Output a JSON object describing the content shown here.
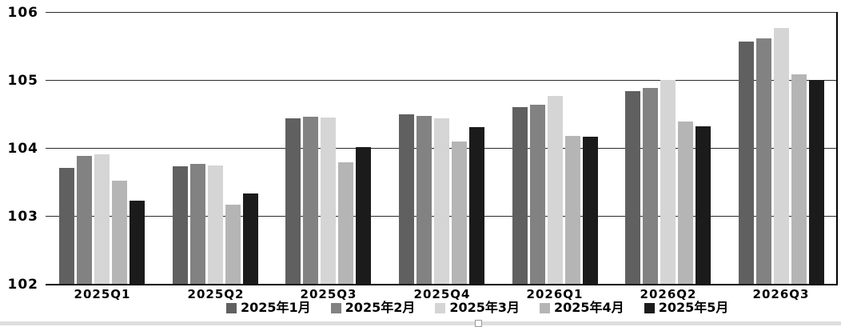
{
  "chart_data": {
    "type": "bar",
    "title": "",
    "xlabel": "",
    "ylabel": "",
    "categories": [
      "2025Q1",
      "2025Q2",
      "2025Q3",
      "2025Q4",
      "2026Q1",
      "2026Q2",
      "2026Q3"
    ],
    "series": [
      {
        "name": "2025年1月",
        "color": "#606060",
        "values": [
          103.7,
          103.73,
          104.44,
          104.5,
          104.6,
          104.83,
          105.56
        ]
      },
      {
        "name": "2025年2月",
        "color": "#828282",
        "values": [
          103.88,
          103.76,
          104.46,
          104.47,
          104.63,
          104.88,
          105.61
        ]
      },
      {
        "name": "2025年3月",
        "color": "#d5d5d5",
        "values": [
          103.9,
          103.74,
          104.45,
          104.43,
          104.76,
          105.0,
          105.77
        ]
      },
      {
        "name": "2025年4月",
        "color": "#b5b5b5",
        "values": [
          103.52,
          103.17,
          103.79,
          104.09,
          104.18,
          104.39,
          105.08
        ]
      },
      {
        "name": "2025年5月",
        "color": "#1b1b1b",
        "values": [
          103.22,
          103.33,
          104.01,
          104.31,
          104.17,
          104.32,
          105.0
        ]
      }
    ],
    "ylim": [
      102,
      106
    ],
    "yticks": [
      102,
      103,
      104,
      105,
      106
    ],
    "grid": true,
    "legend_position": "bottom",
    "colors": {
      "gridline": "#2b2b2b",
      "axis": "#000000",
      "background": "#ffffff",
      "text": "#000000"
    }
  }
}
